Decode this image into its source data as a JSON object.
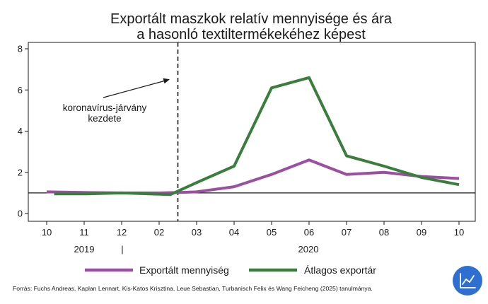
{
  "chart_data": {
    "type": "line",
    "title_lines": [
      "Exportált maszkok relatív mennyisége és ára",
      "a hasonló textiltermékekéhez képest"
    ],
    "categories": [
      "10",
      "11",
      "12",
      "02",
      "03",
      "04",
      "05",
      "06",
      "07",
      "08",
      "09",
      "10"
    ],
    "year_labels": [
      "2019",
      "2020"
    ],
    "year_separator": "|",
    "ylim": [
      0,
      8
    ],
    "yticks": [
      0,
      2,
      4,
      6,
      8
    ],
    "reference_line": 1,
    "event_line_position": 3.5,
    "annotation_lines": [
      "koronavírus-járvány",
      "kezdete"
    ],
    "series": [
      {
        "name": "Exportált mennyiség",
        "color": "#9b4fa1",
        "x": [
          0,
          1,
          2,
          3,
          3.55,
          4,
          5,
          6,
          7,
          8,
          9,
          10,
          11
        ],
        "values": [
          1.05,
          1.02,
          1.0,
          1.0,
          1.02,
          1.05,
          1.3,
          1.9,
          2.6,
          1.9,
          2.0,
          1.8,
          1.7
        ]
      },
      {
        "name": "Átlagos exportár",
        "color": "#3a7d3d",
        "x": [
          0.2,
          1,
          2,
          3.3,
          4,
          5,
          6,
          7,
          8,
          9,
          10,
          11
        ],
        "values": [
          0.95,
          0.95,
          1.0,
          0.92,
          1.5,
          2.3,
          6.1,
          6.6,
          2.8,
          2.3,
          1.75,
          1.4
        ]
      }
    ],
    "source": "Forrás: Fuchs Andreas, Kaplan Lennart, Kis-Katos Krisztina, Leue Sebastian, Turbanisch Felix és Wang Feicheng (2025) tanulmánya.",
    "badge_icon": "line-chart-icon",
    "badge_color": "#2e6fd1"
  }
}
